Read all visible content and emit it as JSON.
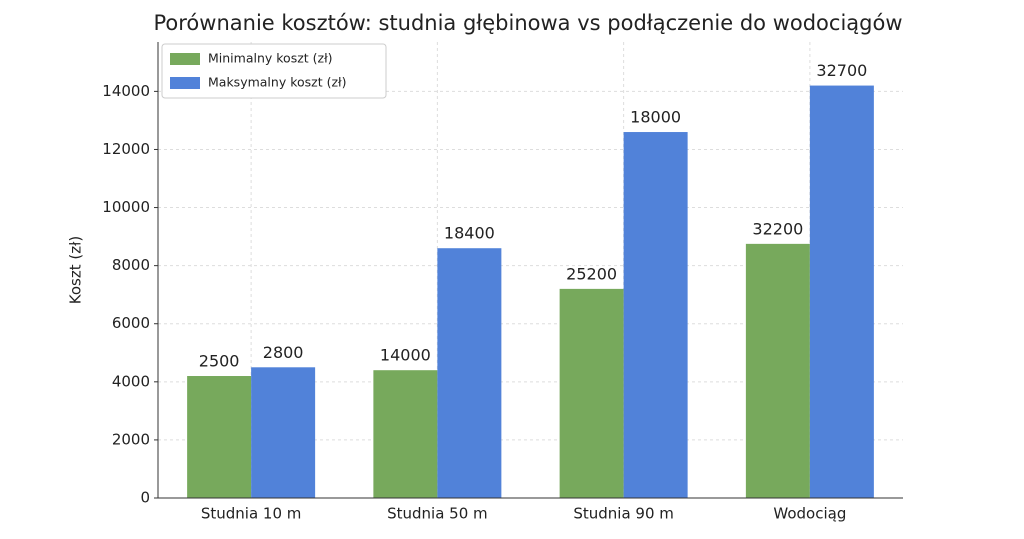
{
  "chart_data": {
    "type": "bar",
    "title": "Porównanie kosztów: studnia głębinowa vs podłączenie do wodociągów",
    "y_label": "Koszt (zł)",
    "categories": [
      "Studnia 10 m",
      "Studnia 50 m",
      "Studnia 90 m",
      "Wodociąg"
    ],
    "series": [
      {
        "name": "Minimalny koszt (zł)",
        "color": "#77a95c",
        "values": [
          4200,
          4400,
          7200,
          8750
        ],
        "annotations": [
          "2500",
          "14000",
          "25200",
          "32200"
        ]
      },
      {
        "name": "Maksymalny koszt (zł)",
        "color": "#5182d9",
        "values": [
          4500,
          8600,
          12600,
          14200
        ],
        "annotations": [
          "2800",
          "18400",
          "18000",
          "32700"
        ]
      }
    ],
    "ylim": [
      0,
      15700
    ],
    "yticks": [
      0,
      2000,
      4000,
      6000,
      8000,
      10000,
      12000,
      14000
    ],
    "grid": true,
    "legend": "upper left"
  }
}
